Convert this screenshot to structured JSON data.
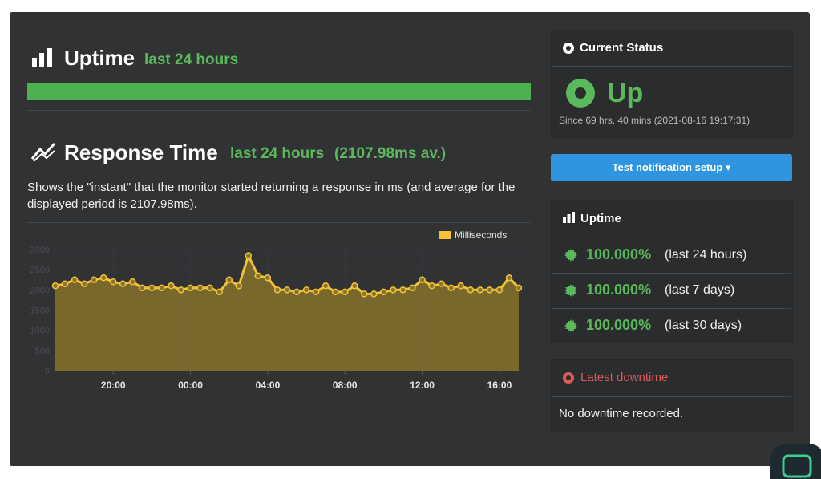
{
  "uptime_section": {
    "title": "Uptime",
    "subtitle": "last 24 hours"
  },
  "response_section": {
    "title": "Response Time",
    "subtitle": "last 24 hours",
    "average": "(2107.98ms av.)",
    "description": "Shows the \"instant\" that the monitor started returning a response in ms (and average for the displayed period is 2107.98ms)."
  },
  "chart_data": {
    "type": "area",
    "x": [
      17,
      17.5,
      18,
      18.5,
      19,
      19.5,
      20,
      20.5,
      21,
      21.5,
      22,
      22.5,
      23,
      23.5,
      24,
      24.5,
      25,
      25.5,
      26,
      26.5,
      27,
      27.5,
      28,
      28.5,
      29,
      29.5,
      30,
      30.5,
      31,
      31.5,
      32,
      32.5,
      33,
      33.5,
      34,
      34.5,
      35,
      35.5,
      36,
      36.5,
      37,
      37.5,
      38,
      38.5,
      39,
      39.5,
      40,
      40.5,
      41
    ],
    "series": [
      {
        "name": "Milliseconds",
        "color": "#f3c236",
        "values": [
          2100,
          2150,
          2250,
          2150,
          2250,
          2300,
          2200,
          2150,
          2200,
          2050,
          2050,
          2050,
          2100,
          2000,
          2050,
          2050,
          2050,
          1950,
          2250,
          2100,
          2850,
          2350,
          2300,
          2000,
          2000,
          1950,
          2000,
          1950,
          2100,
          1950,
          1950,
          2100,
          1900,
          1900,
          1950,
          2000,
          2000,
          2050,
          2250,
          2100,
          2150,
          2050,
          2100,
          2000,
          2000,
          2000,
          2000,
          2300,
          2050
        ]
      }
    ],
    "xlim": [
      17,
      41
    ],
    "xticks": [
      {
        "value": 20,
        "label": "20:00"
      },
      {
        "value": 24,
        "label": "00:00"
      },
      {
        "value": 28,
        "label": "04:00"
      },
      {
        "value": 32,
        "label": "08:00"
      },
      {
        "value": 36,
        "label": "12:00"
      },
      {
        "value": 40,
        "label": "16:00"
      }
    ],
    "ylim": [
      0,
      3000
    ],
    "yticks": [
      0,
      500,
      1000,
      1500,
      2000,
      2500,
      3000
    ],
    "grid": true,
    "legend": "top-right"
  },
  "current_status": {
    "title": "Current Status",
    "status": "Up",
    "since": "Since 69 hrs, 40 mins (2021-08-16 19:17:31)"
  },
  "button": {
    "label": "Test notification setup"
  },
  "uptime_card": {
    "title": "Uptime",
    "rows": [
      {
        "percent": "100.000%",
        "period": "(last 24 hours)"
      },
      {
        "percent": "100.000%",
        "period": "(last 7 days)"
      },
      {
        "percent": "100.000%",
        "period": "(last 30 days)"
      }
    ]
  },
  "downtime_card": {
    "title": "Latest downtime",
    "message": "No downtime recorded."
  }
}
